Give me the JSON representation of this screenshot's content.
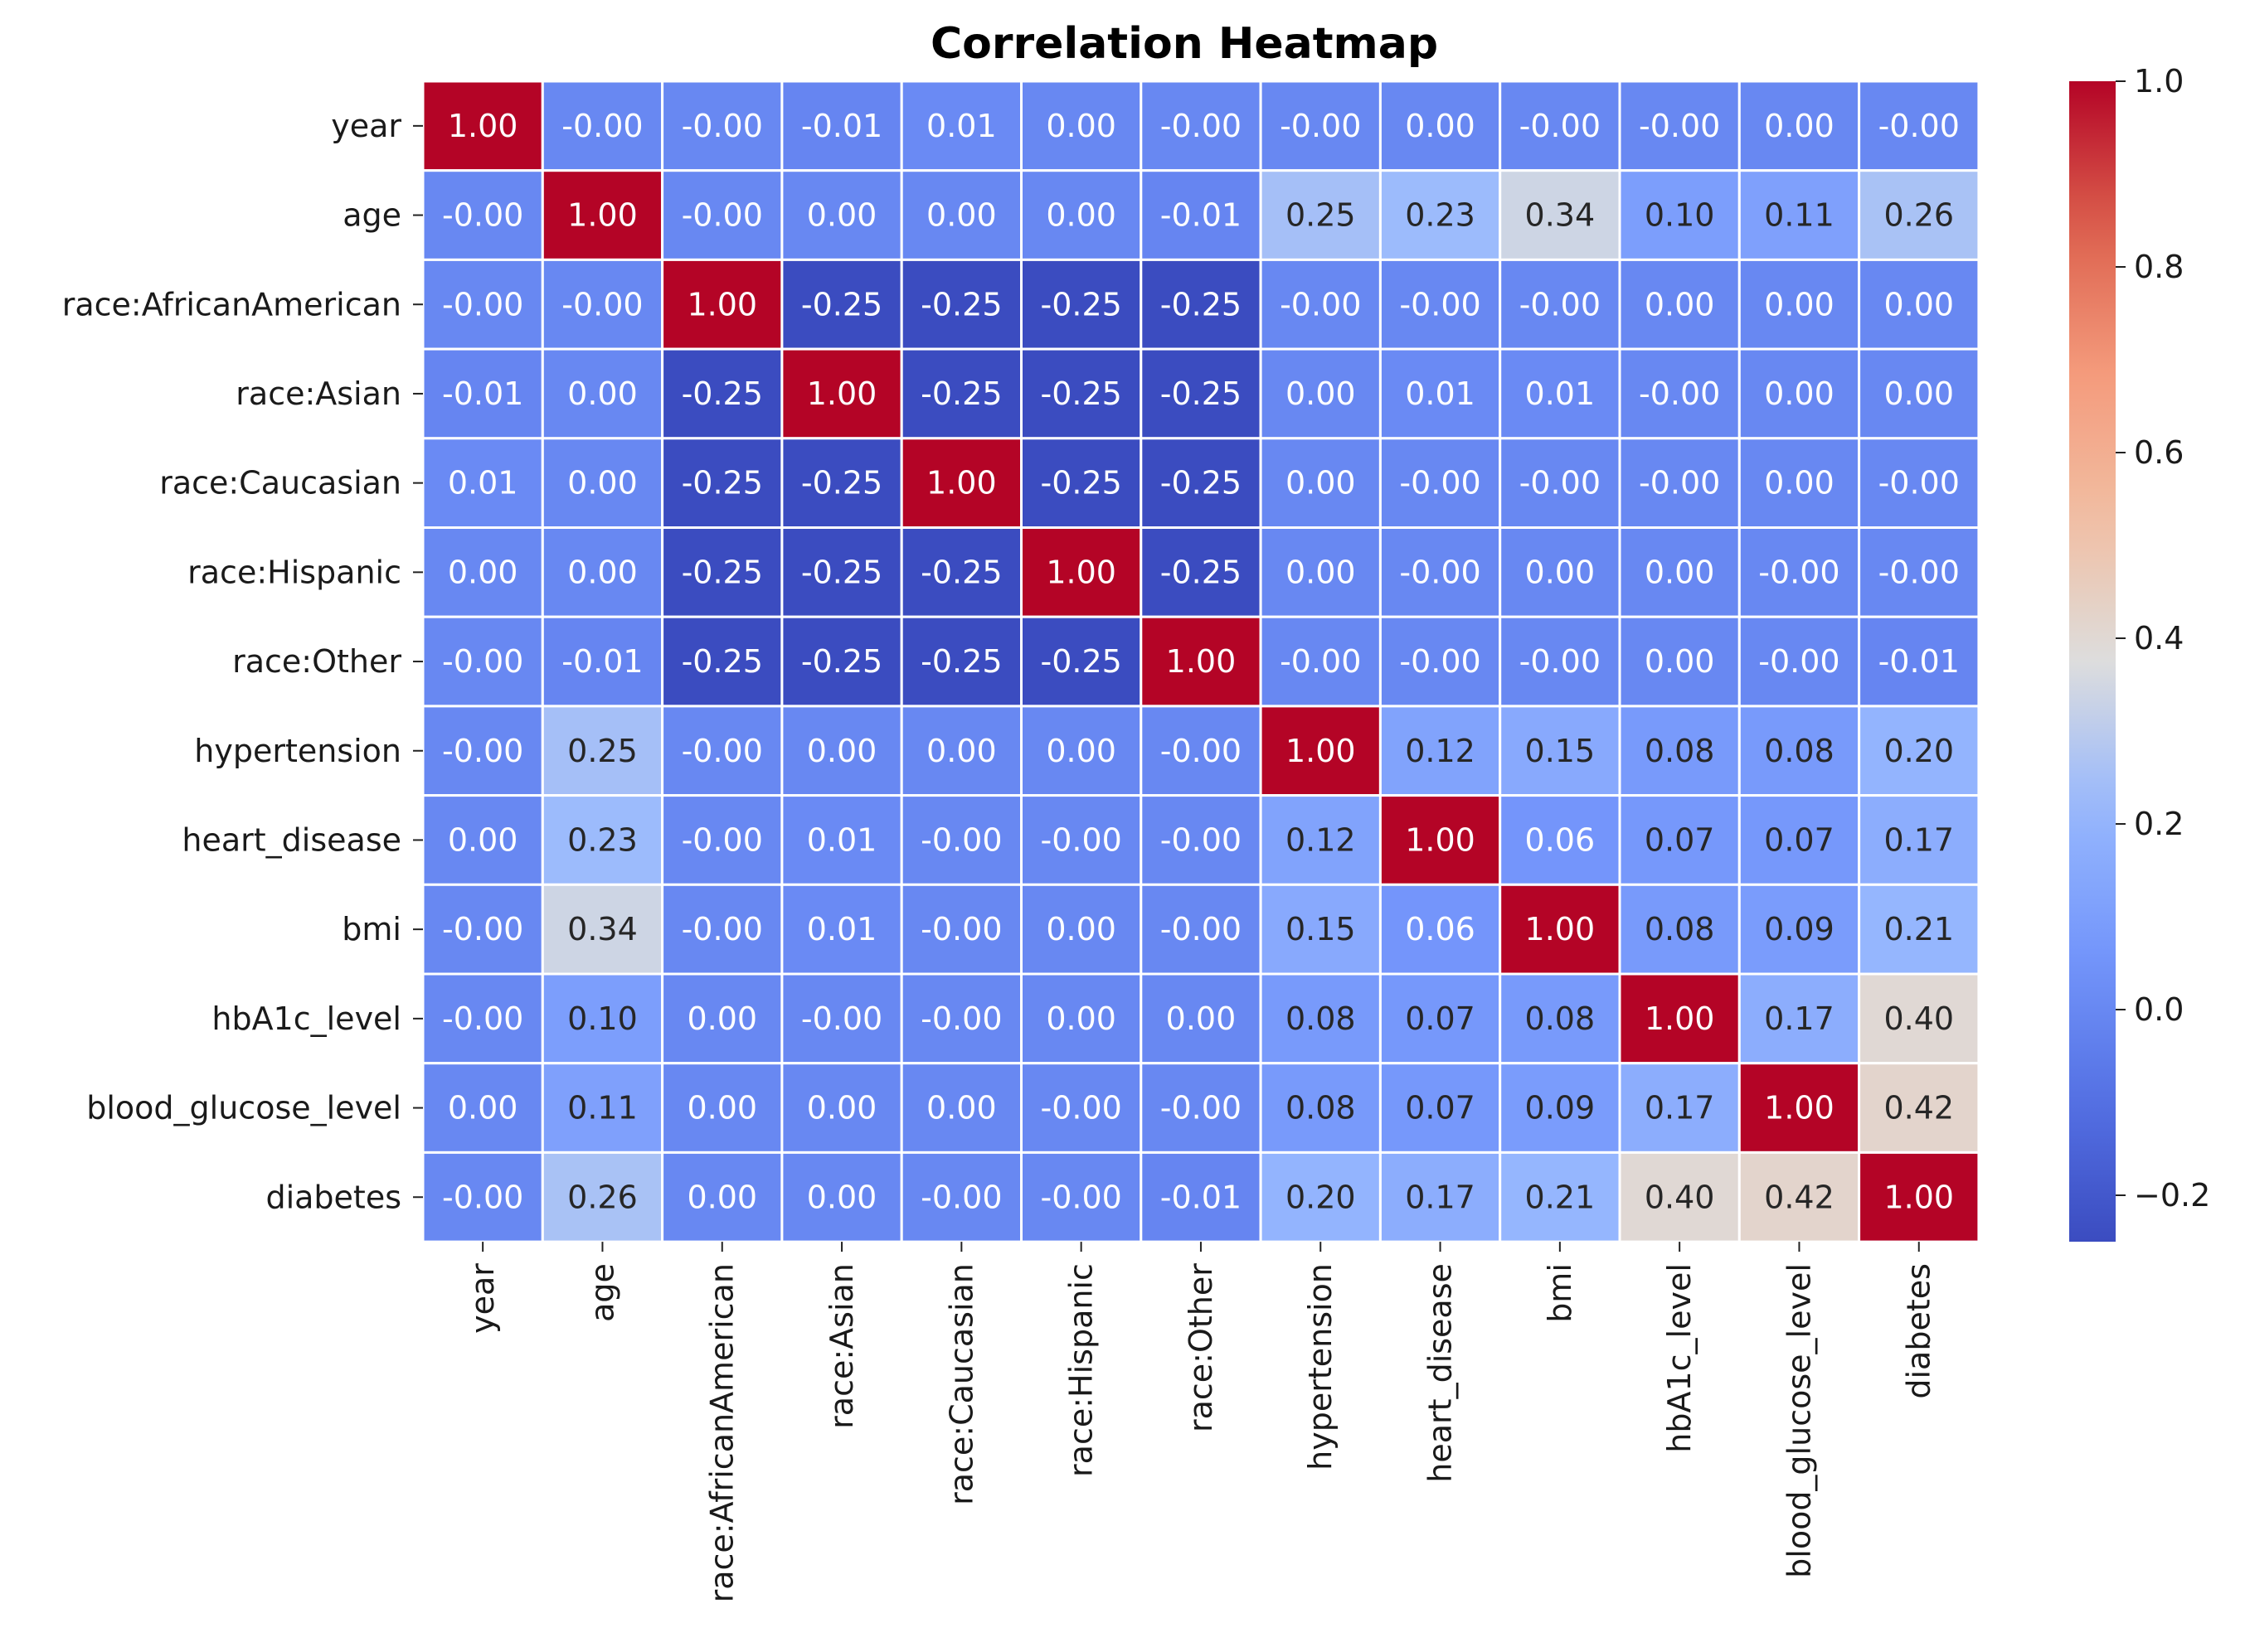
{
  "chart_data": {
    "type": "heatmap",
    "title": "Correlation Heatmap",
    "xlabel": "",
    "ylabel": "",
    "colormap": "coolwarm",
    "value_range": [
      -0.25,
      1.0
    ],
    "labels": [
      "year",
      "age",
      "race:AfricanAmerican",
      "race:Asian",
      "race:Caucasian",
      "race:Hispanic",
      "race:Other",
      "hypertension",
      "heart_disease",
      "bmi",
      "hbA1c_level",
      "blood_glucose_level",
      "diabetes"
    ],
    "matrix": [
      [
        1.0,
        -0.0,
        -0.0,
        -0.01,
        0.01,
        0.0,
        -0.0,
        -0.0,
        0.0,
        -0.0,
        -0.0,
        0.0,
        -0.0
      ],
      [
        -0.0,
        1.0,
        -0.0,
        0.0,
        0.0,
        0.0,
        -0.01,
        0.25,
        0.23,
        0.34,
        0.1,
        0.11,
        0.26
      ],
      [
        -0.0,
        -0.0,
        1.0,
        -0.25,
        -0.25,
        -0.25,
        -0.25,
        -0.0,
        -0.0,
        -0.0,
        0.0,
        0.0,
        0.0
      ],
      [
        -0.01,
        0.0,
        -0.25,
        1.0,
        -0.25,
        -0.25,
        -0.25,
        0.0,
        0.01,
        0.01,
        -0.0,
        0.0,
        0.0
      ],
      [
        0.01,
        0.0,
        -0.25,
        -0.25,
        1.0,
        -0.25,
        -0.25,
        0.0,
        -0.0,
        -0.0,
        -0.0,
        0.0,
        -0.0
      ],
      [
        0.0,
        0.0,
        -0.25,
        -0.25,
        -0.25,
        1.0,
        -0.25,
        0.0,
        -0.0,
        0.0,
        0.0,
        -0.0,
        -0.0
      ],
      [
        -0.0,
        -0.01,
        -0.25,
        -0.25,
        -0.25,
        -0.25,
        1.0,
        -0.0,
        -0.0,
        -0.0,
        0.0,
        -0.0,
        -0.01
      ],
      [
        -0.0,
        0.25,
        -0.0,
        0.0,
        0.0,
        0.0,
        -0.0,
        1.0,
        0.12,
        0.15,
        0.08,
        0.08,
        0.2
      ],
      [
        0.0,
        0.23,
        -0.0,
        0.01,
        -0.0,
        -0.0,
        -0.0,
        0.12,
        1.0,
        0.06,
        0.07,
        0.07,
        0.17
      ],
      [
        -0.0,
        0.34,
        -0.0,
        0.01,
        -0.0,
        0.0,
        -0.0,
        0.15,
        0.06,
        1.0,
        0.08,
        0.09,
        0.21
      ],
      [
        -0.0,
        0.1,
        0.0,
        -0.0,
        -0.0,
        0.0,
        0.0,
        0.08,
        0.07,
        0.08,
        1.0,
        0.17,
        0.4
      ],
      [
        0.0,
        0.11,
        0.0,
        0.0,
        0.0,
        -0.0,
        -0.0,
        0.08,
        0.07,
        0.09,
        0.17,
        1.0,
        0.42
      ],
      [
        -0.0,
        0.26,
        0.0,
        0.0,
        -0.0,
        -0.0,
        -0.01,
        0.2,
        0.17,
        0.21,
        0.4,
        0.42,
        1.0
      ]
    ],
    "cell_text": [
      [
        "1.00",
        "-0.00",
        "-0.00",
        "-0.01",
        "0.01",
        "0.00",
        "-0.00",
        "-0.00",
        "0.00",
        "-0.00",
        "-0.00",
        "0.00",
        "-0.00"
      ],
      [
        "-0.00",
        "1.00",
        "-0.00",
        "0.00",
        "0.00",
        "0.00",
        "-0.01",
        "0.25",
        "0.23",
        "0.34",
        "0.10",
        "0.11",
        "0.26"
      ],
      [
        "-0.00",
        "-0.00",
        "1.00",
        "-0.25",
        "-0.25",
        "-0.25",
        "-0.25",
        "-0.00",
        "-0.00",
        "-0.00",
        "0.00",
        "0.00",
        "0.00"
      ],
      [
        "-0.01",
        "0.00",
        "-0.25",
        "1.00",
        "-0.25",
        "-0.25",
        "-0.25",
        "0.00",
        "0.01",
        "0.01",
        "-0.00",
        "0.00",
        "0.00"
      ],
      [
        "0.01",
        "0.00",
        "-0.25",
        "-0.25",
        "1.00",
        "-0.25",
        "-0.25",
        "0.00",
        "-0.00",
        "-0.00",
        "-0.00",
        "0.00",
        "-0.00"
      ],
      [
        "0.00",
        "0.00",
        "-0.25",
        "-0.25",
        "-0.25",
        "1.00",
        "-0.25",
        "0.00",
        "-0.00",
        "0.00",
        "0.00",
        "-0.00",
        "-0.00"
      ],
      [
        "-0.00",
        "-0.01",
        "-0.25",
        "-0.25",
        "-0.25",
        "-0.25",
        "1.00",
        "-0.00",
        "-0.00",
        "-0.00",
        "0.00",
        "-0.00",
        "-0.01"
      ],
      [
        "-0.00",
        "0.25",
        "-0.00",
        "0.00",
        "0.00",
        "0.00",
        "-0.00",
        "1.00",
        "0.12",
        "0.15",
        "0.08",
        "0.08",
        "0.20"
      ],
      [
        "0.00",
        "0.23",
        "-0.00",
        "0.01",
        "-0.00",
        "-0.00",
        "-0.00",
        "0.12",
        "1.00",
        "0.06",
        "0.07",
        "0.07",
        "0.17"
      ],
      [
        "-0.00",
        "0.34",
        "-0.00",
        "0.01",
        "-0.00",
        "0.00",
        "-0.00",
        "0.15",
        "0.06",
        "1.00",
        "0.08",
        "0.09",
        "0.21"
      ],
      [
        "-0.00",
        "0.10",
        "0.00",
        "-0.00",
        "-0.00",
        "0.00",
        "0.00",
        "0.08",
        "0.07",
        "0.08",
        "1.00",
        "0.17",
        "0.40"
      ],
      [
        "0.00",
        "0.11",
        "0.00",
        "0.00",
        "0.00",
        "-0.00",
        "-0.00",
        "0.08",
        "0.07",
        "0.09",
        "0.17",
        "1.00",
        "0.42"
      ],
      [
        "-0.00",
        "0.26",
        "0.00",
        "0.00",
        "-0.00",
        "-0.00",
        "-0.01",
        "0.20",
        "0.17",
        "0.21",
        "0.40",
        "0.42",
        "1.00"
      ]
    ],
    "colorbar": {
      "ticks": [
        1.0,
        0.8,
        0.6,
        0.4,
        0.2,
        0.0,
        -0.2
      ],
      "tick_labels": [
        "1.0",
        "0.8",
        "0.6",
        "0.4",
        "0.2",
        "0.0",
        "−0.2"
      ]
    },
    "grid": true,
    "legend": "colorbar-right"
  }
}
